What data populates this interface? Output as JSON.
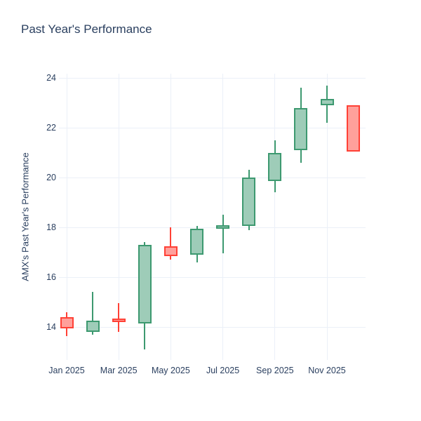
{
  "figure": {
    "title": "Past Year's Performance"
  },
  "chart_data": {
    "type": "candlestick",
    "title": "Past Year's Performance",
    "xlabel": "",
    "ylabel": "AMX's Past Year's Performance",
    "legend": "none",
    "grid": true,
    "background_color": "#ffffff",
    "text_color": "#2a3f5f",
    "grid_color": "#ebf0f8",
    "increasing_line_color": "#3D9970",
    "increasing_fill_color": "#9eccb8",
    "decreasing_line_color": "#FF4136",
    "decreasing_fill_color": "#ffa09b",
    "y_ticks": [
      14,
      16,
      18,
      20,
      22,
      24
    ],
    "ylim": [
      12.68,
      24.17
    ],
    "x_ticks": [
      {
        "index": 0,
        "label": "Jan 2025"
      },
      {
        "index": 2,
        "label": "Mar 2025"
      },
      {
        "index": 4,
        "label": "May 2025"
      },
      {
        "index": 6,
        "label": "Jul 2025"
      },
      {
        "index": 8,
        "label": "Sep 2025"
      },
      {
        "index": 10,
        "label": "Nov 2025"
      }
    ],
    "categories": [
      "Jan 2025",
      "Feb 2025",
      "Mar 2025",
      "Apr 2025",
      "May 2025",
      "Jun 2025",
      "Jul 2025",
      "Aug 2025",
      "Sep 2025",
      "Oct 2025",
      "Nov 2025",
      "Dec 2025"
    ],
    "series": [
      {
        "month": "Jan 2025",
        "open": 14.4,
        "high": 14.6,
        "low": 13.65,
        "close": 13.95,
        "direction": "decreasing"
      },
      {
        "month": "Feb 2025",
        "open": 13.8,
        "high": 15.4,
        "low": 13.7,
        "close": 14.25,
        "direction": "increasing"
      },
      {
        "month": "Mar 2025",
        "open": 14.35,
        "high": 14.95,
        "low": 13.8,
        "close": 14.2,
        "direction": "decreasing"
      },
      {
        "month": "Apr 2025",
        "open": 14.15,
        "high": 17.4,
        "low": 13.1,
        "close": 17.3,
        "direction": "increasing"
      },
      {
        "month": "May 2025",
        "open": 17.25,
        "high": 18.0,
        "low": 16.7,
        "close": 16.85,
        "direction": "decreasing"
      },
      {
        "month": "Jun 2025",
        "open": 16.9,
        "high": 18.05,
        "low": 16.6,
        "close": 17.95,
        "direction": "increasing"
      },
      {
        "month": "Jul 2025",
        "open": 17.95,
        "high": 18.5,
        "low": 16.95,
        "close": 18.1,
        "direction": "increasing"
      },
      {
        "month": "Aug 2025",
        "open": 18.05,
        "high": 20.3,
        "low": 17.9,
        "close": 20.0,
        "direction": "increasing"
      },
      {
        "month": "Sep 2025",
        "open": 19.85,
        "high": 21.5,
        "low": 19.4,
        "close": 21.0,
        "direction": "increasing"
      },
      {
        "month": "Oct 2025",
        "open": 21.1,
        "high": 23.6,
        "low": 20.6,
        "close": 22.8,
        "direction": "increasing"
      },
      {
        "month": "Nov 2025",
        "open": 22.9,
        "high": 23.7,
        "low": 22.2,
        "close": 23.15,
        "direction": "increasing"
      },
      {
        "month": "Dec 2025",
        "open": 22.9,
        "high": 22.9,
        "low": 21.05,
        "close": 21.05,
        "direction": "decreasing"
      }
    ]
  }
}
